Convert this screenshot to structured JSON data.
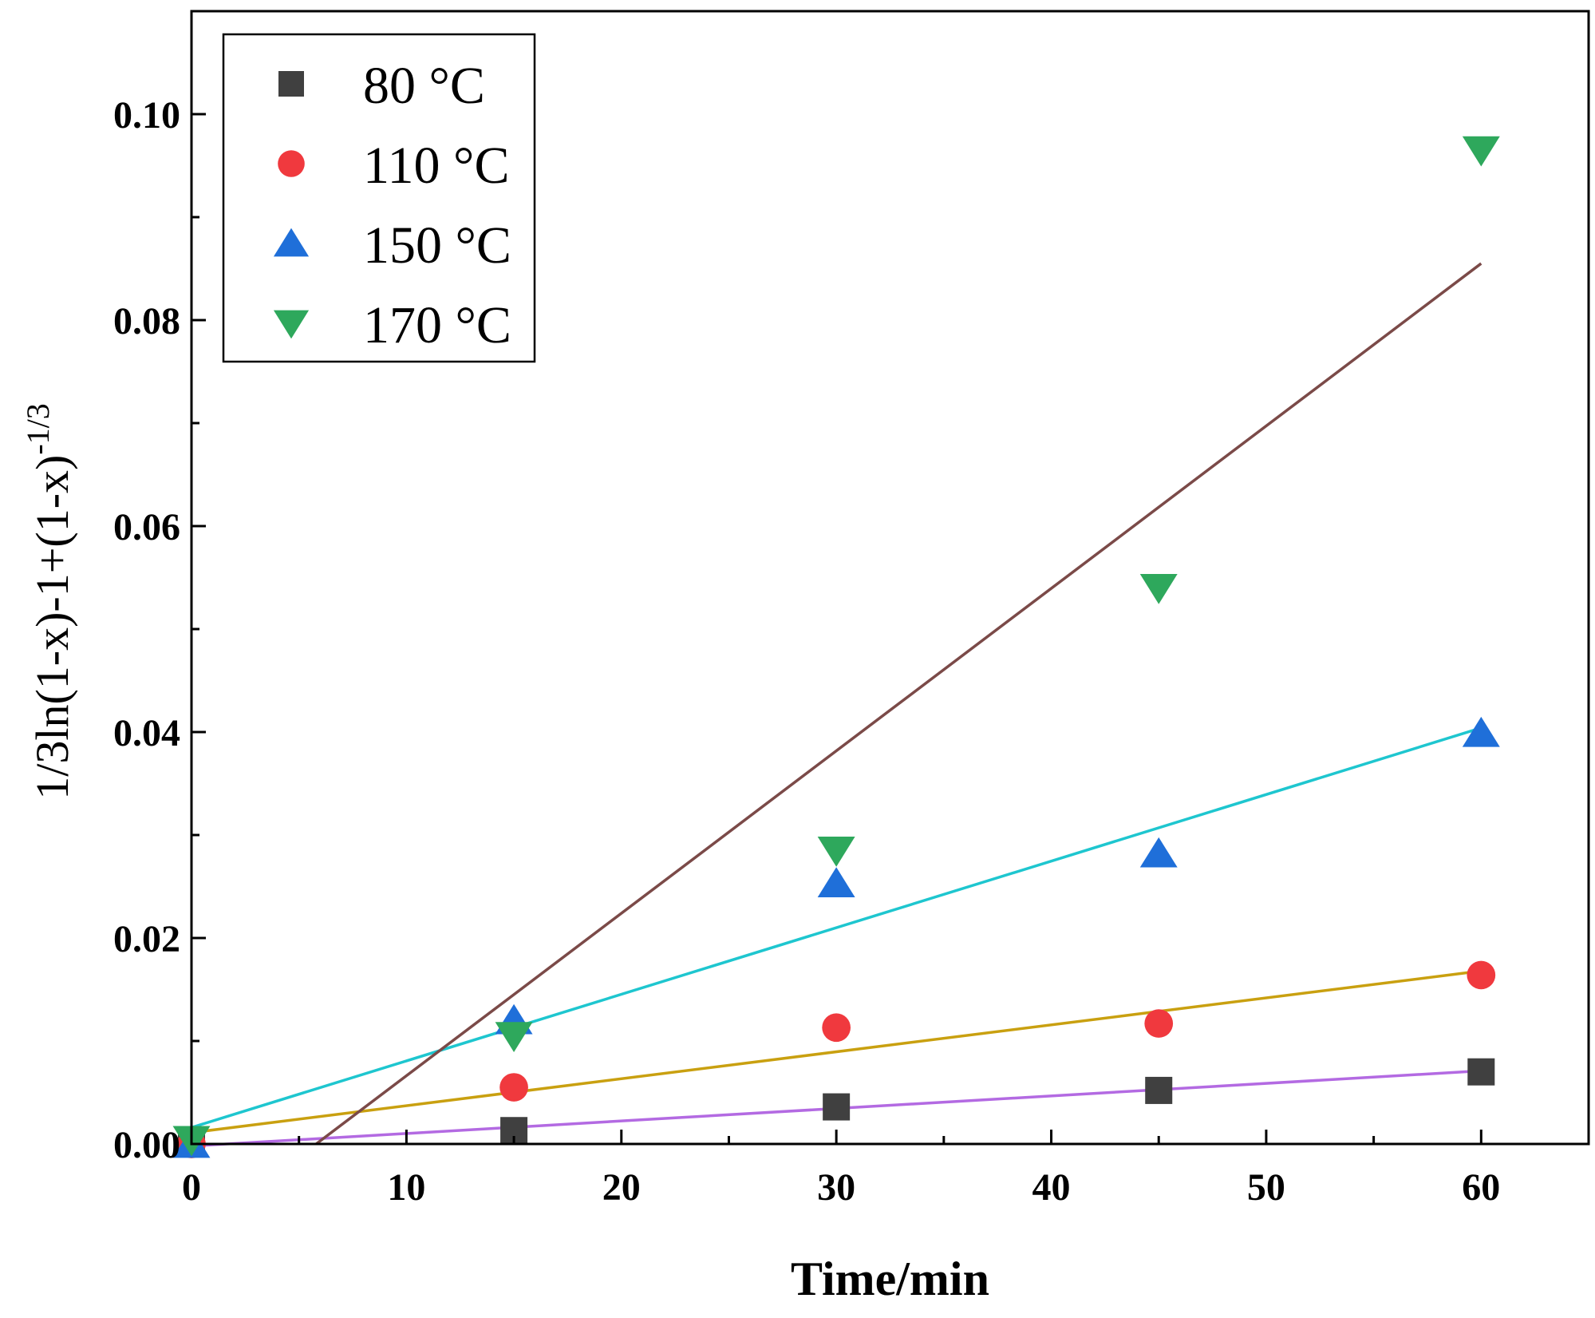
{
  "chart_data": {
    "type": "scatter",
    "title": "",
    "xlabel": "Time/min",
    "ylabel": {
      "main": "1/3ln(1-x)-1+(1-x)",
      "superscript": "-1/3"
    },
    "xlim": [
      0,
      65
    ],
    "ylim": [
      0,
      0.11
    ],
    "xticks": [
      0,
      10,
      20,
      30,
      40,
      50,
      60
    ],
    "xtick_labels": [
      "0",
      "10",
      "20",
      "30",
      "40",
      "50",
      "60"
    ],
    "yticks": [
      0,
      0.02,
      0.04,
      0.06,
      0.08,
      0.1
    ],
    "ytick_labels": [
      "0.00",
      "0.02",
      "0.04",
      "0.06",
      "0.08",
      "0.10"
    ],
    "grid": false,
    "legend_position": "top-left",
    "series": [
      {
        "name": "80 °C",
        "marker": "square",
        "color": "#404040",
        "x": [
          0,
          15,
          30,
          45,
          60
        ],
        "y": [
          0.0,
          0.0013,
          0.0036,
          0.0052,
          0.007
        ],
        "fit": {
          "color": "#b36ae2",
          "x": [
            0,
            60
          ],
          "y": [
            -0.0002,
            0.0071
          ]
        }
      },
      {
        "name": "110 °C",
        "marker": "circle",
        "color": "#f0393e",
        "x": [
          0,
          15,
          30,
          45,
          60
        ],
        "y": [
          0.0,
          0.0055,
          0.0113,
          0.0117,
          0.0164
        ],
        "fit": {
          "color": "#c9a010",
          "x": [
            0,
            60
          ],
          "y": [
            0.0011,
            0.0168
          ]
        }
      },
      {
        "name": "150 °C",
        "marker": "triangle-up",
        "color": "#1f6fd9",
        "x": [
          0,
          15,
          30,
          45,
          60
        ],
        "y": [
          0.0,
          0.012,
          0.0253,
          0.0282,
          0.0399
        ],
        "fit": {
          "color": "#1ec6cf",
          "x": [
            0,
            60
          ],
          "y": [
            0.0016,
            0.0404
          ]
        }
      },
      {
        "name": "170 °C",
        "marker": "triangle-down",
        "color": "#2ea85c",
        "x": [
          0,
          15,
          30,
          45,
          60
        ],
        "y": [
          0.0004,
          0.0105,
          0.0285,
          0.054,
          0.0965
        ],
        "fit": {
          "color": "#7b4a48",
          "x": [
            5.8,
            60
          ],
          "y": [
            0.0,
            0.0855
          ]
        }
      }
    ]
  }
}
